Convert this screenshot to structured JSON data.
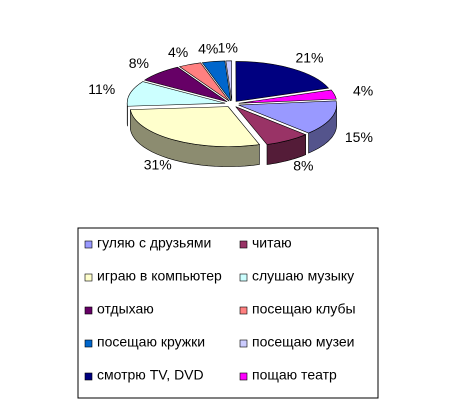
{
  "chart_data": {
    "type": "pie",
    "categories": [
      "гуляю с друзьями",
      "читаю",
      "играю в компьютер",
      "слушаю музыку",
      "отдыхаю",
      "посещаю клубы",
      "посещаю кружки",
      "посещаю музеи",
      "смотрю TV, DVD",
      "пощаю театр"
    ],
    "values": [
      15,
      8,
      31,
      11,
      8,
      4,
      4,
      1,
      21,
      4
    ],
    "value_labels": [
      "15%",
      "8%",
      "31%",
      "11%",
      "8%",
      "4%",
      "4%",
      "1%",
      "21%",
      "4%"
    ],
    "colors": [
      "#9999ff",
      "#993366",
      "#ffffcc",
      "#ccffff",
      "#660066",
      "#ff8080",
      "#0066cc",
      "#ccccff",
      "#000080",
      "#ff00ff"
    ],
    "legend": "bottom"
  }
}
